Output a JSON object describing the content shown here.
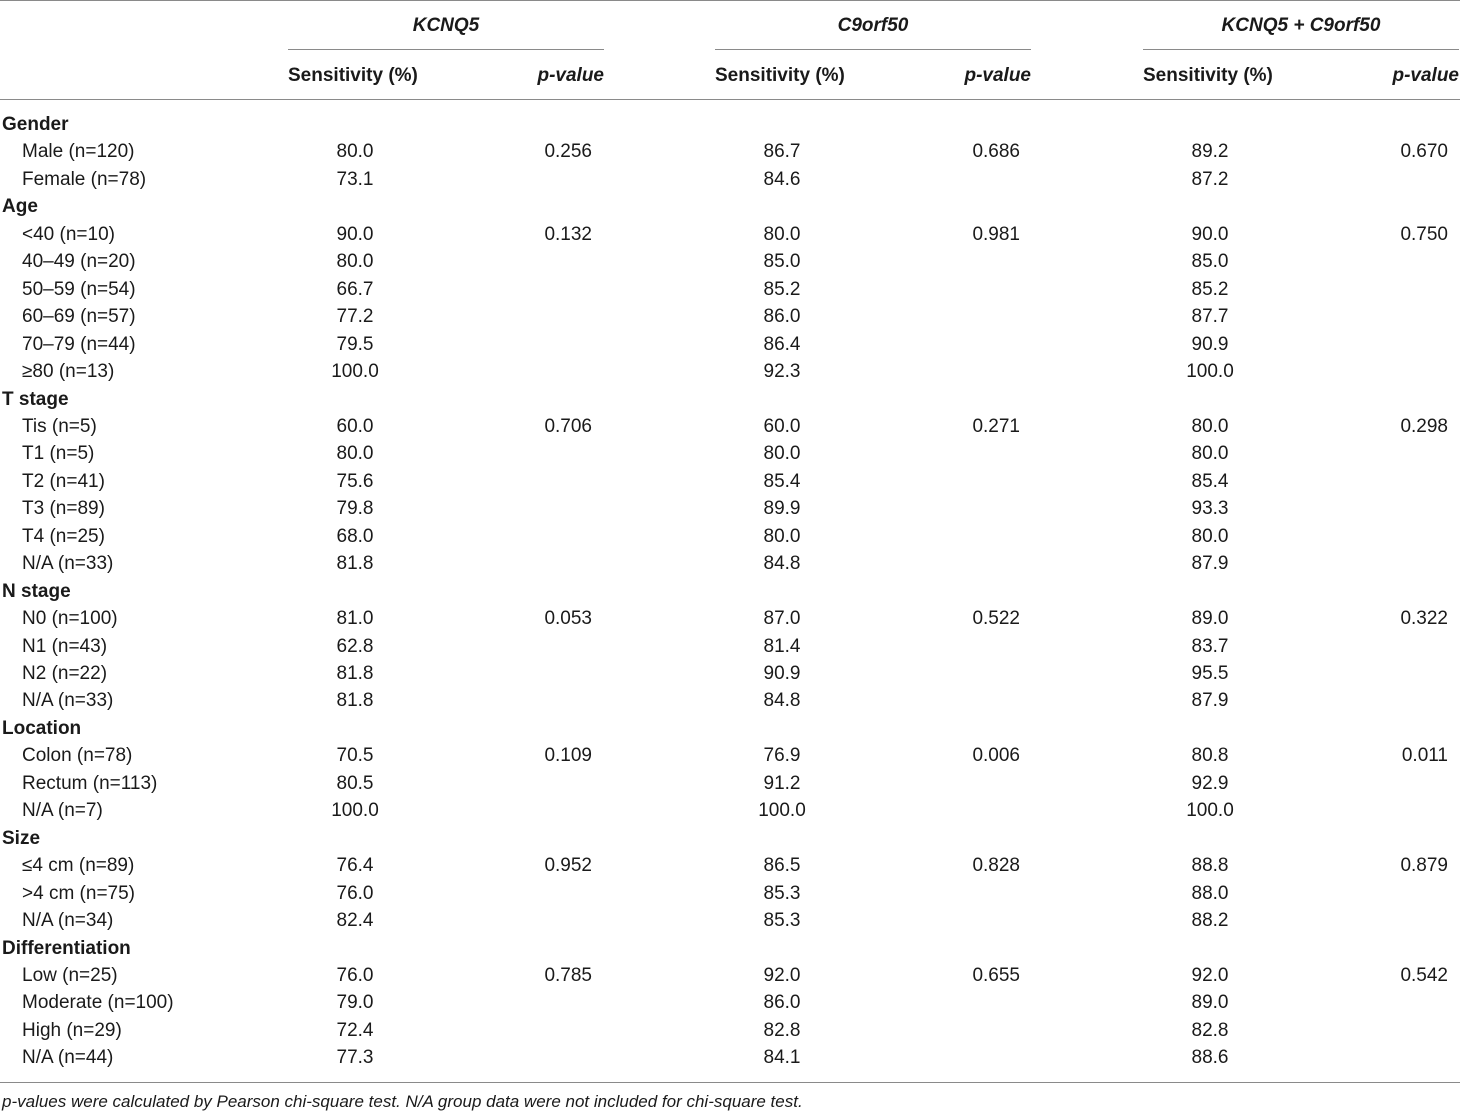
{
  "header": {
    "groups": [
      "KCNQ5",
      "C9orf50",
      "KCNQ5 + C9orf50"
    ],
    "sensitivity_label": "Sensitivity (%)",
    "pvalue_label": "p-value"
  },
  "sections": [
    {
      "title": "Gender",
      "rows": [
        {
          "label": "Male (n=120)",
          "k": "80.0",
          "kp": "0.256",
          "c": "86.7",
          "cp": "0.686",
          "b": "89.2",
          "bp": "0.670"
        },
        {
          "label": "Female (n=78)",
          "k": "73.1",
          "kp": "",
          "c": "84.6",
          "cp": "",
          "b": "87.2",
          "bp": ""
        }
      ]
    },
    {
      "title": "Age",
      "rows": [
        {
          "label": "<40 (n=10)",
          "k": "90.0",
          "kp": "0.132",
          "c": "80.0",
          "cp": "0.981",
          "b": "90.0",
          "bp": "0.750"
        },
        {
          "label": "40–49 (n=20)",
          "k": "80.0",
          "kp": "",
          "c": "85.0",
          "cp": "",
          "b": "85.0",
          "bp": ""
        },
        {
          "label": "50–59 (n=54)",
          "k": "66.7",
          "kp": "",
          "c": "85.2",
          "cp": "",
          "b": "85.2",
          "bp": ""
        },
        {
          "label": "60–69 (n=57)",
          "k": "77.2",
          "kp": "",
          "c": "86.0",
          "cp": "",
          "b": "87.7",
          "bp": ""
        },
        {
          "label": "70–79 (n=44)",
          "k": "79.5",
          "kp": "",
          "c": "86.4",
          "cp": "",
          "b": "90.9",
          "bp": ""
        },
        {
          "label": "≥80 (n=13)",
          "k": "100.0",
          "kp": "",
          "c": "92.3",
          "cp": "",
          "b": "100.0",
          "bp": ""
        }
      ]
    },
    {
      "title": "T stage",
      "rows": [
        {
          "label": "Tis (n=5)",
          "k": "60.0",
          "kp": "0.706",
          "c": "60.0",
          "cp": "0.271",
          "b": "80.0",
          "bp": "0.298"
        },
        {
          "label": "T1 (n=5)",
          "k": "80.0",
          "kp": "",
          "c": "80.0",
          "cp": "",
          "b": "80.0",
          "bp": ""
        },
        {
          "label": "T2 (n=41)",
          "k": "75.6",
          "kp": "",
          "c": "85.4",
          "cp": "",
          "b": "85.4",
          "bp": ""
        },
        {
          "label": "T3 (n=89)",
          "k": "79.8",
          "kp": "",
          "c": "89.9",
          "cp": "",
          "b": "93.3",
          "bp": ""
        },
        {
          "label": "T4 (n=25)",
          "k": "68.0",
          "kp": "",
          "c": "80.0",
          "cp": "",
          "b": "80.0",
          "bp": ""
        },
        {
          "label": "N/A (n=33)",
          "k": "81.8",
          "kp": "",
          "c": "84.8",
          "cp": "",
          "b": "87.9",
          "bp": ""
        }
      ]
    },
    {
      "title": "N stage",
      "rows": [
        {
          "label": "N0 (n=100)",
          "k": "81.0",
          "kp": "0.053",
          "c": "87.0",
          "cp": "0.522",
          "b": "89.0",
          "bp": "0.322"
        },
        {
          "label": "N1 (n=43)",
          "k": "62.8",
          "kp": "",
          "c": "81.4",
          "cp": "",
          "b": "83.7",
          "bp": ""
        },
        {
          "label": "N2 (n=22)",
          "k": "81.8",
          "kp": "",
          "c": "90.9",
          "cp": "",
          "b": "95.5",
          "bp": ""
        },
        {
          "label": "N/A (n=33)",
          "k": "81.8",
          "kp": "",
          "c": "84.8",
          "cp": "",
          "b": "87.9",
          "bp": ""
        }
      ]
    },
    {
      "title": "Location",
      "rows": [
        {
          "label": "Colon (n=78)",
          "k": "70.5",
          "kp": "0.109",
          "c": "76.9",
          "cp": "0.006",
          "b": "80.8",
          "bp": "0.011"
        },
        {
          "label": "Rectum (n=113)",
          "k": "80.5",
          "kp": "",
          "c": "91.2",
          "cp": "",
          "b": "92.9",
          "bp": ""
        },
        {
          "label": "N/A (n=7)",
          "k": "100.0",
          "kp": "",
          "c": "100.0",
          "cp": "",
          "b": "100.0",
          "bp": ""
        }
      ]
    },
    {
      "title": "Size",
      "rows": [
        {
          "label": "≤4 cm (n=89)",
          "k": "76.4",
          "kp": "0.952",
          "c": "86.5",
          "cp": "0.828",
          "b": "88.8",
          "bp": "0.879"
        },
        {
          "label": ">4 cm (n=75)",
          "k": "76.0",
          "kp": "",
          "c": "85.3",
          "cp": "",
          "b": "88.0",
          "bp": ""
        },
        {
          "label": "N/A (n=34)",
          "k": "82.4",
          "kp": "",
          "c": "85.3",
          "cp": "",
          "b": "88.2",
          "bp": ""
        }
      ]
    },
    {
      "title": "Differentiation",
      "rows": [
        {
          "label": "Low (n=25)",
          "k": "76.0",
          "kp": "0.785",
          "c": "92.0",
          "cp": "0.655",
          "b": "92.0",
          "bp": "0.542"
        },
        {
          "label": "Moderate (n=100)",
          "k": "79.0",
          "kp": "",
          "c": "86.0",
          "cp": "",
          "b": "89.0",
          "bp": ""
        },
        {
          "label": "High (n=29)",
          "k": "72.4",
          "kp": "",
          "c": "82.8",
          "cp": "",
          "b": "82.8",
          "bp": ""
        },
        {
          "label": "N/A (n=44)",
          "k": "77.3",
          "kp": "",
          "c": "84.1",
          "cp": "",
          "b": "88.6",
          "bp": ""
        }
      ]
    }
  ],
  "footnote": "p-values were calculated by Pearson chi-square test. N/A group data were not included for chi-square test."
}
